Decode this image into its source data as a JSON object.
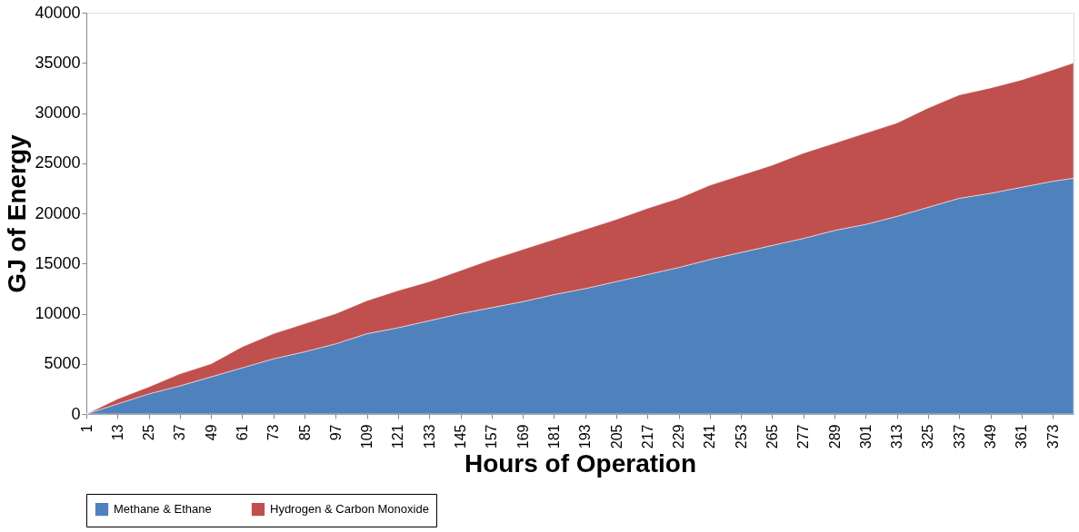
{
  "chart_data": {
    "type": "area",
    "stacked": true,
    "xlabel": "Hours of Operation",
    "ylabel": "GJ of Energy",
    "x": [
      1,
      13,
      25,
      37,
      49,
      61,
      73,
      85,
      97,
      109,
      121,
      133,
      145,
      157,
      169,
      181,
      193,
      205,
      217,
      229,
      241,
      253,
      265,
      277,
      289,
      301,
      313,
      325,
      337,
      349,
      361,
      373,
      381
    ],
    "series": [
      {
        "name": "Methane & Ethane",
        "color": "#4f81bd",
        "values": [
          0,
          1000,
          2000,
          2800,
          3700,
          4600,
          5500,
          6200,
          7000,
          8000,
          8600,
          9300,
          10000,
          10600,
          11200,
          11900,
          12500,
          13200,
          13900,
          14600,
          15400,
          16100,
          16800,
          17500,
          18300,
          18900,
          19700,
          20600,
          21500,
          22000,
          22600,
          23200,
          23500
        ]
      },
      {
        "name": "Hydrogen & Carbon Monoxide",
        "color": "#c0504d",
        "values": [
          0,
          500,
          700,
          1200,
          1300,
          2100,
          2500,
          2800,
          3000,
          3300,
          3700,
          3900,
          4300,
          4800,
          5200,
          5500,
          5900,
          6200,
          6600,
          6900,
          7400,
          7700,
          8000,
          8500,
          8700,
          9100,
          9300,
          9900,
          10300,
          10500,
          10700,
          11100,
          11500
        ]
      }
    ],
    "xlim": [
      1,
      381
    ],
    "xticks": [
      1,
      13,
      25,
      37,
      49,
      61,
      73,
      85,
      97,
      109,
      121,
      133,
      145,
      157,
      169,
      181,
      193,
      205,
      217,
      229,
      241,
      253,
      265,
      277,
      289,
      301,
      313,
      325,
      337,
      349,
      361,
      373
    ],
    "ylim": [
      0,
      40000
    ],
    "yticks": [
      0,
      5000,
      10000,
      15000,
      20000,
      25000,
      30000,
      35000,
      40000
    ],
    "grid": false,
    "legend": "bottom"
  }
}
